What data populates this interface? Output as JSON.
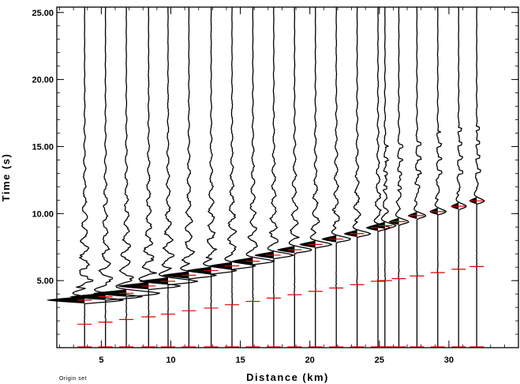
{
  "chart_data": {
    "type": "seismic-record-section",
    "xlabel": "Distance (km)",
    "ylabel": "Time (s)",
    "xlim": [
      1.8,
      35
    ],
    "ylim": [
      0,
      25.4
    ],
    "x_ticks": [
      5,
      10,
      15,
      20,
      25,
      30
    ],
    "x_tick_labels": [
      "5",
      "10",
      "15",
      "20",
      "25",
      "30"
    ],
    "y_ticks": [
      5,
      10,
      15,
      20,
      25
    ],
    "y_tick_labels": [
      "5.00",
      "10.00",
      "15.00",
      "20.00",
      "25.00"
    ],
    "traces": [
      {
        "distance": 3.8,
        "p_pick": 1.75,
        "s_pick": 3.55
      },
      {
        "distance": 5.3,
        "p_pick": 1.9,
        "s_pick": 3.8
      },
      {
        "distance": 6.8,
        "p_pick": 2.1,
        "s_pick": 4.05
      },
      {
        "distance": 8.4,
        "p_pick": 2.3,
        "s_pick": 4.6
      },
      {
        "distance": 9.8,
        "p_pick": 2.5,
        "s_pick": 4.95
      },
      {
        "distance": 11.3,
        "p_pick": 2.75,
        "s_pick": 5.4
      },
      {
        "distance": 12.9,
        "p_pick": 2.95,
        "s_pick": 5.75
      },
      {
        "distance": 14.4,
        "p_pick": 3.2,
        "s_pick": 6.1
      },
      {
        "distance": 15.9,
        "p_pick": 3.45,
        "s_pick": 6.45
      },
      {
        "distance": 17.4,
        "p_pick": 3.7,
        "s_pick": 6.9
      },
      {
        "distance": 18.9,
        "p_pick": 3.95,
        "s_pick": 7.3
      },
      {
        "distance": 20.4,
        "p_pick": 4.2,
        "s_pick": 7.7
      },
      {
        "distance": 21.9,
        "p_pick": 4.45,
        "s_pick": 8.1
      },
      {
        "distance": 23.4,
        "p_pick": 4.7,
        "s_pick": 8.5
      },
      {
        "distance": 24.9,
        "p_pick": 4.95,
        "s_pick": 8.95
      },
      {
        "distance": 25.4,
        "p_pick": 5.0,
        "s_pick": 9.1
      },
      {
        "distance": 26.4,
        "p_pick": 5.15,
        "s_pick": 9.4
      },
      {
        "distance": 27.7,
        "p_pick": 5.35,
        "s_pick": 9.85
      },
      {
        "distance": 29.2,
        "p_pick": 5.6,
        "s_pick": 10.15
      },
      {
        "distance": 30.7,
        "p_pick": 5.85,
        "s_pick": 10.55
      },
      {
        "distance": 32.0,
        "p_pick": 6.05,
        "s_pick": 10.95
      }
    ]
  },
  "footnote": "Origin set",
  "colors": {
    "trace": "#000000",
    "pick": "#e00000"
  }
}
